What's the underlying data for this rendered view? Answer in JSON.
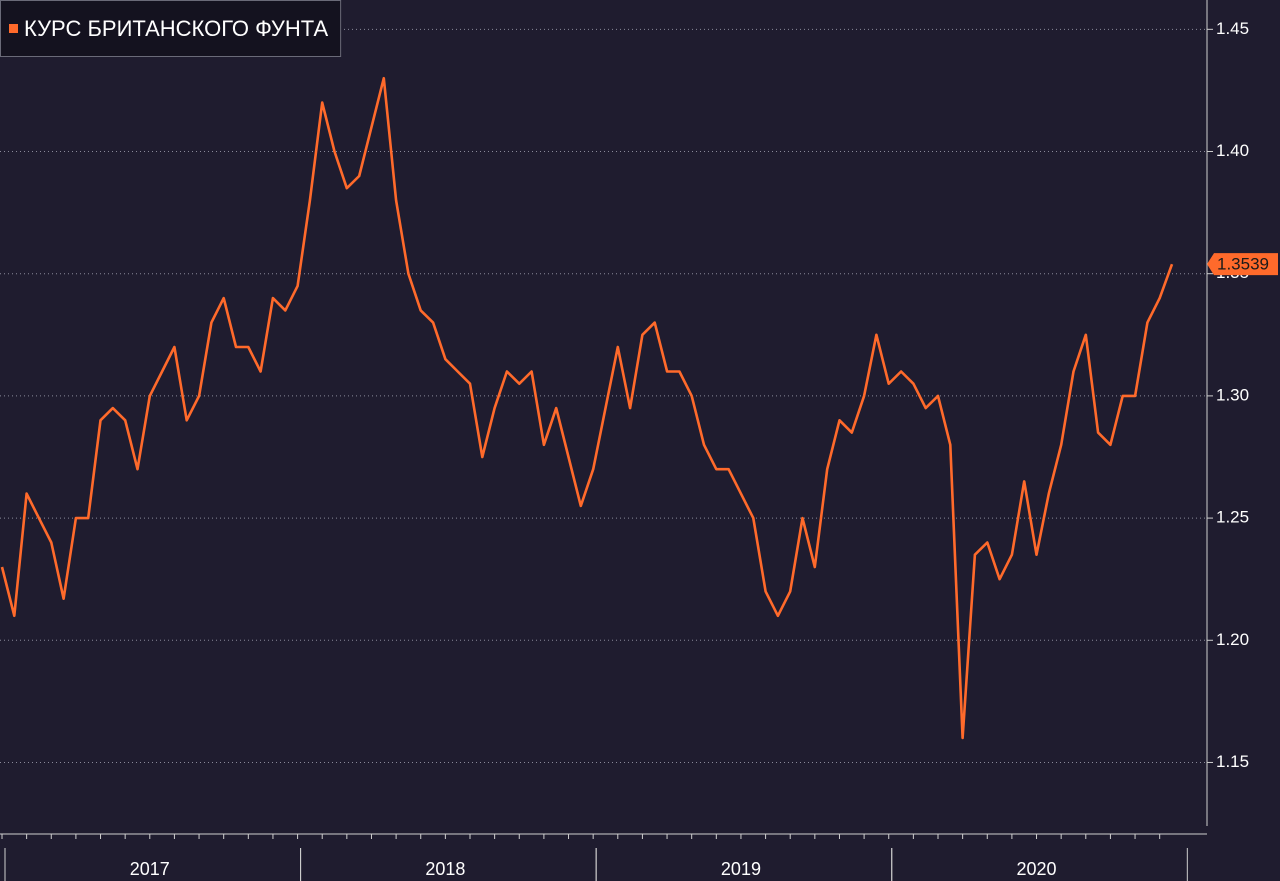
{
  "chart_data": {
    "type": "line",
    "categories": [
      null,
      null,
      null,
      null,
      null,
      null,
      null,
      null,
      null,
      null,
      null,
      null,
      "2017",
      null,
      null,
      null,
      null,
      null,
      null,
      null,
      null,
      null,
      null,
      null,
      null,
      null,
      null,
      null,
      null,
      null,
      null,
      null,
      null,
      null,
      null,
      null,
      "2018",
      null,
      null,
      null,
      null,
      null,
      null,
      null,
      null,
      null,
      null,
      null,
      null,
      null,
      null,
      null,
      null,
      null,
      null,
      null,
      null,
      null,
      null,
      null,
      "2019",
      null,
      null,
      null,
      null,
      null,
      null,
      null,
      null,
      null,
      null,
      null,
      null,
      null,
      null,
      null,
      null,
      null,
      null,
      null,
      null,
      null,
      null,
      null,
      "2020",
      null,
      null,
      null,
      null,
      null,
      null,
      null,
      null,
      null,
      null,
      null
    ],
    "series": [
      {
        "name": "КУРС БРИТАНСКОГО ФУНТА",
        "color": "#ff6a2b",
        "values": [
          1.23,
          1.21,
          1.26,
          1.25,
          1.24,
          1.217,
          1.25,
          1.25,
          1.29,
          1.295,
          1.29,
          1.27,
          1.3,
          1.31,
          1.32,
          1.29,
          1.3,
          1.33,
          1.34,
          1.32,
          1.32,
          1.31,
          1.34,
          1.335,
          1.345,
          1.38,
          1.42,
          1.4,
          1.385,
          1.39,
          1.41,
          1.43,
          1.38,
          1.35,
          1.335,
          1.33,
          1.315,
          1.31,
          1.305,
          1.275,
          1.295,
          1.31,
          1.305,
          1.31,
          1.28,
          1.295,
          1.275,
          1.255,
          1.27,
          1.295,
          1.32,
          1.295,
          1.325,
          1.33,
          1.31,
          1.31,
          1.3,
          1.28,
          1.27,
          1.27,
          1.26,
          1.25,
          1.22,
          1.21,
          1.22,
          1.25,
          1.23,
          1.27,
          1.29,
          1.285,
          1.3,
          1.325,
          1.305,
          1.31,
          1.305,
          1.295,
          1.3,
          1.28,
          1.16,
          1.235,
          1.24,
          1.225,
          1.235,
          1.265,
          1.235,
          1.26,
          1.28,
          1.31,
          1.325,
          1.285,
          1.28,
          1.3,
          1.3,
          1.33,
          1.34,
          1.3539
        ]
      }
    ],
    "ylim": [
      1.124,
      1.462
    ],
    "yticks": [
      1.15,
      {
        "value": 1.2,
        "label": "1.20"
      },
      1.25,
      {
        "value": 1.3,
        "label": "1.30"
      },
      1.35,
      {
        "value": 1.4,
        "label": "1.40"
      },
      1.45
    ],
    "grid": true
  }
}
